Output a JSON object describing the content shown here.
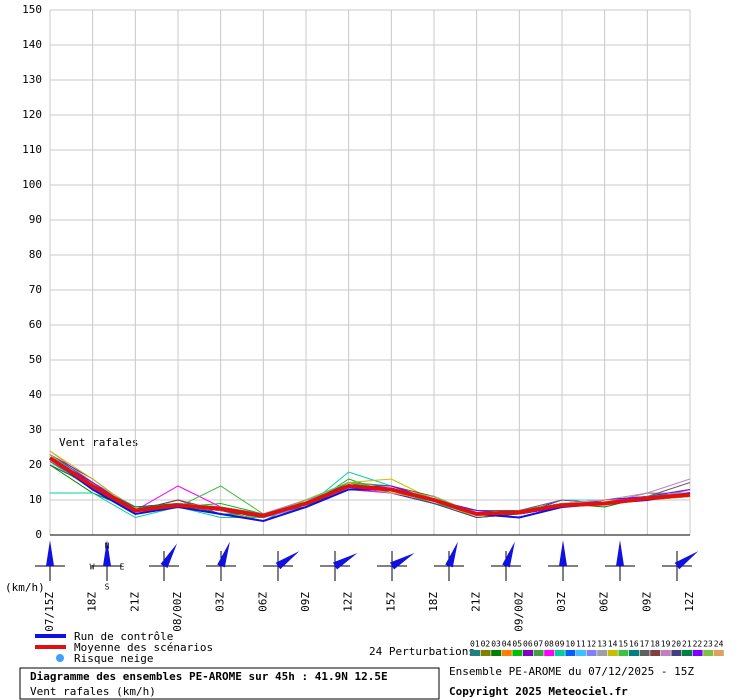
{
  "chart_data": {
    "type": "line",
    "annotation": "Vent rafales",
    "y_unit": "(km/h)",
    "categories": [
      "07/15Z",
      "18Z",
      "21Z",
      "08/00Z",
      "03Z",
      "06Z",
      "09Z",
      "12Z",
      "15Z",
      "18Z",
      "21Z",
      "09/00Z",
      "03Z",
      "06Z",
      "09Z",
      "12Z"
    ],
    "ylim": [
      0,
      150
    ],
    "yticks": [
      0,
      10,
      20,
      30,
      40,
      50,
      60,
      70,
      80,
      90,
      100,
      110,
      120,
      130,
      140,
      150
    ],
    "grid": true,
    "series": [
      {
        "name": "Run de contrôle",
        "color": "#1010e0",
        "values": [
          22,
          13,
          6,
          8,
          6,
          4,
          8,
          13,
          13,
          10,
          6,
          5,
          8,
          9,
          10,
          12
        ]
      },
      {
        "name": "Moyenne des scénarios",
        "color": "#e01010",
        "values": [
          22,
          14,
          7,
          8.5,
          7.5,
          5.5,
          9,
          14,
          13,
          10,
          6,
          6.5,
          8.5,
          9,
          10.5,
          11.5
        ]
      }
    ],
    "perturbations_label": "24 Perturbations",
    "perturbations": [
      {
        "name": "01",
        "color": "#208080",
        "values": [
          23,
          15,
          8,
          9,
          6,
          5,
          9,
          15,
          14,
          10,
          7,
          6,
          9,
          9,
          11,
          12
        ]
      },
      {
        "name": "02",
        "color": "#808000",
        "values": [
          21,
          13,
          6,
          8,
          7,
          6,
          8,
          13,
          12,
          9,
          5,
          6,
          8,
          10,
          10,
          11
        ]
      },
      {
        "name": "03",
        "color": "#008000",
        "values": [
          20,
          12,
          7,
          9,
          8,
          6,
          10,
          15,
          13,
          11,
          6,
          7,
          9,
          8,
          11,
          12
        ]
      },
      {
        "name": "04",
        "color": "#ff8000",
        "values": [
          24,
          15,
          8,
          9,
          7,
          5,
          9,
          14,
          14,
          10,
          6,
          6,
          8,
          10,
          10,
          13
        ]
      },
      {
        "name": "05",
        "color": "#00c000",
        "values": [
          22,
          14,
          6,
          8,
          9,
          6,
          8,
          16,
          12,
          9,
          7,
          7,
          9,
          9,
          12,
          11
        ]
      },
      {
        "name": "06",
        "color": "#8000c0",
        "values": [
          23,
          16,
          7,
          10,
          6,
          5,
          9,
          14,
          13,
          11,
          6,
          6,
          10,
          9,
          11,
          12
        ]
      },
      {
        "name": "07",
        "color": "#40a040",
        "values": [
          21,
          13,
          8,
          9,
          7,
          4,
          10,
          15,
          14,
          10,
          5,
          6,
          8,
          9,
          10,
          11
        ]
      },
      {
        "name": "08",
        "color": "#ff00ff",
        "values": [
          22,
          14,
          7,
          14,
          8,
          6,
          9,
          13,
          12,
          9,
          6,
          7,
          9,
          10,
          11,
          13
        ]
      },
      {
        "name": "09",
        "color": "#00d0a0",
        "values": [
          12,
          12,
          5,
          8,
          5,
          5,
          8,
          18,
          14,
          10,
          6,
          7,
          9,
          9,
          10,
          12
        ]
      },
      {
        "name": "10",
        "color": "#0060ff",
        "values": [
          23,
          15,
          7,
          9,
          6,
          5,
          9,
          14,
          13,
          10,
          6,
          6,
          8,
          9,
          11,
          12
        ]
      },
      {
        "name": "11",
        "color": "#40c0ff",
        "values": [
          22,
          14,
          6,
          8,
          7,
          6,
          10,
          15,
          13,
          9,
          6,
          7,
          10,
          10,
          11,
          11
        ]
      },
      {
        "name": "12",
        "color": "#8080ff",
        "values": [
          21,
          13,
          7,
          9,
          8,
          5,
          8,
          14,
          12,
          10,
          7,
          6,
          8,
          9,
          10,
          13
        ]
      },
      {
        "name": "13",
        "color": "#a0a0a0",
        "values": [
          22,
          15,
          8,
          8,
          7,
          6,
          9,
          13,
          13,
          11,
          6,
          6,
          9,
          10,
          12,
          12
        ]
      },
      {
        "name": "14",
        "color": "#c0c000",
        "values": [
          24,
          16,
          7,
          9,
          6,
          5,
          9,
          15,
          16,
          10,
          5,
          6,
          9,
          9,
          11,
          11
        ]
      },
      {
        "name": "15",
        "color": "#40c040",
        "values": [
          23,
          14,
          6,
          8,
          14,
          6,
          10,
          14,
          13,
          9,
          6,
          7,
          8,
          10,
          11,
          12
        ]
      },
      {
        "name": "16",
        "color": "#008080",
        "values": [
          22,
          13,
          7,
          9,
          7,
          5,
          9,
          14,
          12,
          10,
          6,
          6,
          9,
          9,
          10,
          12
        ]
      },
      {
        "name": "17",
        "color": "#606060",
        "values": [
          21,
          14,
          8,
          8,
          6,
          6,
          8,
          15,
          13,
          10,
          7,
          7,
          10,
          9,
          11,
          15
        ]
      },
      {
        "name": "18",
        "color": "#804040",
        "values": [
          22,
          15,
          7,
          10,
          7,
          5,
          9,
          14,
          14,
          11,
          6,
          6,
          8,
          10,
          10,
          12
        ]
      },
      {
        "name": "19",
        "color": "#c080c0",
        "values": [
          23,
          14,
          6,
          9,
          8,
          6,
          10,
          13,
          13,
          10,
          6,
          7,
          9,
          9,
          12,
          16
        ]
      },
      {
        "name": "20",
        "color": "#404080",
        "values": [
          22,
          13,
          7,
          8,
          7,
          5,
          9,
          15,
          12,
          9,
          5,
          6,
          8,
          10,
          11,
          11
        ]
      },
      {
        "name": "21",
        "color": "#008040",
        "values": [
          20,
          14,
          8,
          9,
          6,
          4,
          8,
          14,
          13,
          10,
          6,
          7,
          9,
          9,
          10,
          12
        ]
      },
      {
        "name": "22",
        "color": "#8000ff",
        "values": [
          22,
          15,
          7,
          8,
          7,
          6,
          9,
          14,
          14,
          10,
          7,
          6,
          8,
          10,
          11,
          13
        ]
      },
      {
        "name": "23",
        "color": "#80c040",
        "values": [
          23,
          14,
          6,
          9,
          8,
          5,
          10,
          15,
          13,
          11,
          6,
          7,
          9,
          9,
          11,
          12
        ]
      },
      {
        "name": "24",
        "color": "#e0a060",
        "values": [
          22,
          13,
          7,
          8,
          7,
          6,
          9,
          14,
          12,
          10,
          6,
          6,
          9,
          10,
          10,
          11
        ]
      }
    ],
    "wind_direction": [
      0,
      0,
      30,
      20,
      55,
      60,
      60,
      20,
      20,
      0,
      0,
      55
    ],
    "compass": [
      "N",
      "W",
      "E",
      "S"
    ],
    "snow_label": "Risque neige",
    "box_title": "Diagramme des ensembles PE-AROME sur 45h : 41.9N 12.5E",
    "box_subtitle": "Vent rafales (km/h)",
    "run_info": "Ensemble PE-AROME du 07/12/2025 - 15Z",
    "copyright": "Copyright 2025 Meteociel.fr"
  }
}
